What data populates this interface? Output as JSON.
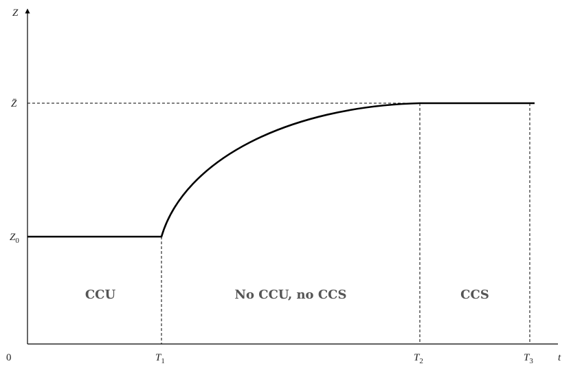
{
  "axes": {
    "y_label": "Z",
    "x_label": "t",
    "origin": "0"
  },
  "levels": {
    "top": "Z̄",
    "start": {
      "base": "Z",
      "sub": "0"
    }
  },
  "times": [
    {
      "base": "T",
      "sub": "1"
    },
    {
      "base": "T",
      "sub": "2"
    },
    {
      "base": "T",
      "sub": "3"
    }
  ],
  "regions": [
    "CCU",
    "No CCU, no CCS",
    "CCS"
  ]
}
